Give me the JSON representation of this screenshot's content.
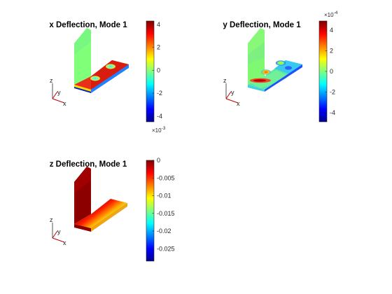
{
  "chart_data": [
    {
      "type": "heatmap",
      "title": "x Deflection, Mode 1",
      "colormap": "jet",
      "colorbar": {
        "min": -4.5,
        "max": 4.3,
        "ticks": [
          4,
          2,
          0,
          -2,
          -4
        ],
        "tick_labels": [
          "4",
          "2",
          "0",
          "-2",
          "-4"
        ],
        "multiplier": "×10",
        "multiplier_exp": "-3",
        "multiplier_position": "bottom"
      },
      "triad": {
        "x": "x",
        "y": "y",
        "z": "z"
      }
    },
    {
      "type": "heatmap",
      "title": "y Deflection, Mode 1",
      "colormap": "jet",
      "colorbar": {
        "min": -4.9,
        "max": 4.9,
        "ticks": [
          4,
          2,
          0,
          -2,
          -4
        ],
        "tick_labels": [
          "4",
          "2",
          "0",
          "-2",
          "-4"
        ],
        "multiplier": "×10",
        "multiplier_exp": "-4",
        "multiplier_position": "top"
      },
      "triad": {
        "x": "x",
        "y": "y",
        "z": "z"
      }
    },
    {
      "type": "heatmap",
      "title": "z Deflection, Mode 1",
      "colormap": "jet",
      "colorbar": {
        "min": -0.0285,
        "max": 0,
        "ticks": [
          0,
          -0.005,
          -0.01,
          -0.015,
          -0.02,
          -0.025
        ],
        "tick_labels": [
          "0",
          "-0.005",
          "-0.01",
          "-0.015",
          "-0.02",
          "-0.025"
        ],
        "multiplier": "",
        "multiplier_exp": "",
        "multiplier_position": "none"
      },
      "triad": {
        "x": "x",
        "y": "y",
        "z": "z"
      }
    }
  ]
}
